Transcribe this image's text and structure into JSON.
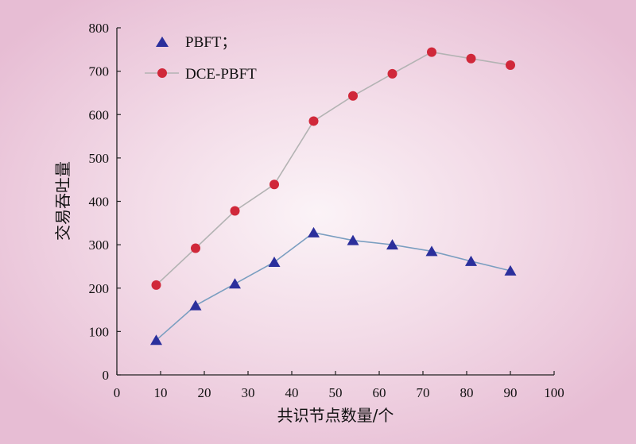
{
  "chart_data": {
    "type": "line",
    "xlabel": "共识节点数量/个",
    "ylabel": "交易吞吐量",
    "xlim": [
      0,
      100
    ],
    "ylim": [
      0,
      800
    ],
    "xticks": [
      "0",
      "10",
      "20",
      "30",
      "40",
      "50",
      "60",
      "70",
      "80",
      "90",
      "100"
    ],
    "yticks": [
      "0",
      "100",
      "200",
      "300",
      "400",
      "500",
      "600",
      "700",
      "800"
    ],
    "grid": false,
    "legend_position": "top-left",
    "series": [
      {
        "name": "PBFT；",
        "marker": "triangle",
        "color": "#2b2f9c",
        "line_color": "#7a9ec0",
        "x": [
          9,
          18,
          27,
          36,
          45,
          54,
          63,
          72,
          81,
          90
        ],
        "y": [
          80,
          160,
          210,
          260,
          328,
          310,
          300,
          285,
          262,
          240
        ]
      },
      {
        "name": "DCE-PBFT",
        "marker": "circle",
        "color": "#d0283a",
        "line_color": "#b3b3b3",
        "x": [
          9,
          18,
          27,
          36,
          45,
          54,
          63,
          72,
          81,
          90
        ],
        "y": [
          207,
          292,
          378,
          439,
          585,
          643,
          694,
          744,
          729,
          714
        ]
      }
    ]
  }
}
